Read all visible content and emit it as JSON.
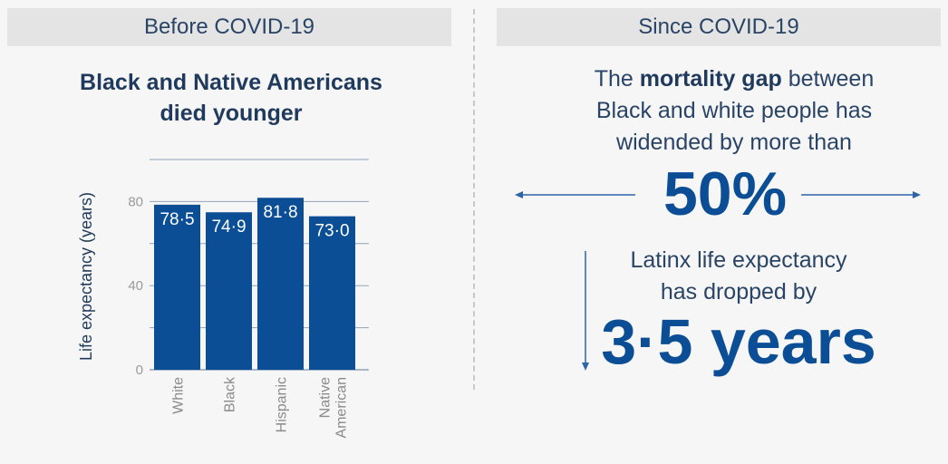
{
  "left_panel": {
    "header": "Before COVID-19",
    "subtitle_line1": "Black and Native Americans",
    "subtitle_line2": "died younger"
  },
  "right_panel": {
    "header": "Since COVID-19",
    "gap_pre": "The ",
    "gap_bold": "mortality gap",
    "gap_post": " between",
    "gap_line2": "Black and white people has",
    "gap_line3": "widended by more than",
    "gap_value": "50%",
    "latinx_line1": "Latinx life expectancy",
    "latinx_line2": "has dropped by",
    "latinx_value": "3·5 years"
  },
  "colors": {
    "bar": "#0b4e96",
    "accent_text": "#0b4e96",
    "header_bg": "#e4e4e4",
    "gridline": "#8fa3b8"
  },
  "chart_data": {
    "type": "bar",
    "title": "Black and Native Americans died younger",
    "xlabel": "",
    "ylabel": "Life expectancy (years)",
    "categories": [
      "White",
      "Black",
      "Hispanic",
      "Native American"
    ],
    "category_lines": [
      [
        "White"
      ],
      [
        "Black"
      ],
      [
        "Hispanic"
      ],
      [
        "Native",
        "American"
      ]
    ],
    "values": [
      78.5,
      74.9,
      81.8,
      73.0
    ],
    "value_labels": [
      "78·5",
      "74·9",
      "81·8",
      "73·0"
    ],
    "ylim": [
      0,
      100
    ],
    "yticks": [
      0,
      40,
      80
    ],
    "ytick_labels": [
      "0",
      "40",
      "80"
    ],
    "gridlines": [
      20,
      40,
      60,
      80,
      100
    ],
    "grid": true
  }
}
